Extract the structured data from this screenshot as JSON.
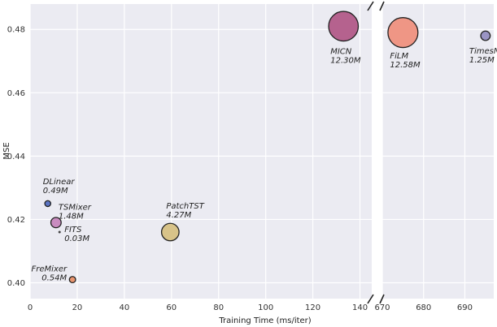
{
  "chart_data": {
    "type": "scatter",
    "title": "",
    "xlabel": "Training Time (ms/iter)",
    "ylabel": "MSE",
    "grid": true,
    "broken_x_axis": true,
    "x_segments": [
      {
        "xlim": [
          0,
          145
        ],
        "ticks": [
          0,
          20,
          40,
          60,
          80,
          100,
          120,
          140
        ]
      },
      {
        "xlim": [
          670,
          697
        ],
        "ticks": [
          670,
          680,
          690
        ]
      }
    ],
    "ylim": [
      0.395,
      0.488
    ],
    "yticks": [
      0.4,
      0.42,
      0.44,
      0.46,
      0.48
    ],
    "points": [
      {
        "model": "DLinear",
        "params": "0.49M",
        "params_m": 0.49,
        "x": 7.5,
        "y": 0.425,
        "color": "#5b74c4"
      },
      {
        "model": "TSMixer",
        "params": "1.48M",
        "params_m": 1.48,
        "x": 11,
        "y": 0.419,
        "color": "#c98cc0"
      },
      {
        "model": "FITS",
        "params": "0.03M",
        "params_m": 0.03,
        "x": 12.5,
        "y": 0.416,
        "color": "#444444"
      },
      {
        "model": "FreMixer",
        "params": "0.54M",
        "params_m": 0.54,
        "x": 18,
        "y": 0.401,
        "color": "#e9956f"
      },
      {
        "model": "PatchTST",
        "params": "4.27M",
        "params_m": 4.27,
        "x": 59.5,
        "y": 0.416,
        "color": "#d8c389"
      },
      {
        "model": "MICN",
        "params": "12.30M",
        "params_m": 12.3,
        "x": 133,
        "y": 0.481,
        "color": "#b5628e"
      },
      {
        "model": "FiLM",
        "params": "12.58M",
        "params_m": 12.58,
        "x": 675,
        "y": 0.479,
        "color": "#ef9685"
      },
      {
        "model": "TimesNet",
        "params": "1.25M",
        "params_m": 1.25,
        "x": 695,
        "y": 0.478,
        "color": "#9a94c4"
      }
    ]
  }
}
